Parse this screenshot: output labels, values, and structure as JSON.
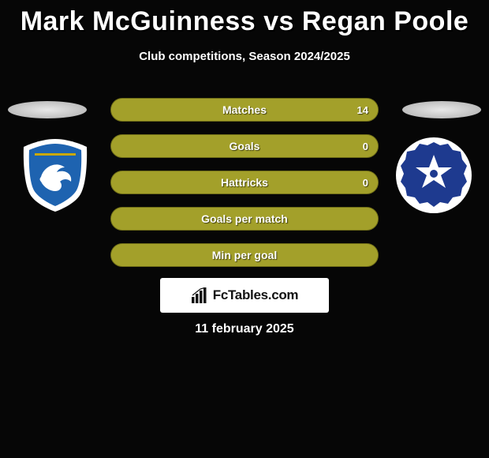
{
  "title": "Mark McGuinness vs Regan Poole",
  "subtitle": "Club competitions, Season 2024/2025",
  "date": "11 february 2025",
  "watermark": {
    "text": "FcTables.com"
  },
  "colors": {
    "stat_bg": "#a3a02a",
    "stat_border": "#6f6d18",
    "left_fill": "#a3a02a",
    "right_fill": "#a3a02a"
  },
  "crest_left": {
    "outer": "#ffffff",
    "inner": "#1e63b0",
    "bird_body": "#ffffff",
    "accent": "#c9a800"
  },
  "crest_right": {
    "outer": "#ffffff",
    "inner": "#1e3a8f",
    "star": "#ffffff"
  },
  "stats": [
    {
      "label": "Matches",
      "value_left": "14",
      "left_pct": 100,
      "right_pct": 0,
      "show_value": true
    },
    {
      "label": "Goals",
      "value_left": "0",
      "left_pct": 50,
      "right_pct": 50,
      "show_value": true
    },
    {
      "label": "Hattricks",
      "value_left": "0",
      "left_pct": 50,
      "right_pct": 50,
      "show_value": true
    },
    {
      "label": "Goals per match",
      "value_left": "",
      "left_pct": 50,
      "right_pct": 50,
      "show_value": false
    },
    {
      "label": "Min per goal",
      "value_left": "",
      "left_pct": 50,
      "right_pct": 50,
      "show_value": false
    }
  ]
}
